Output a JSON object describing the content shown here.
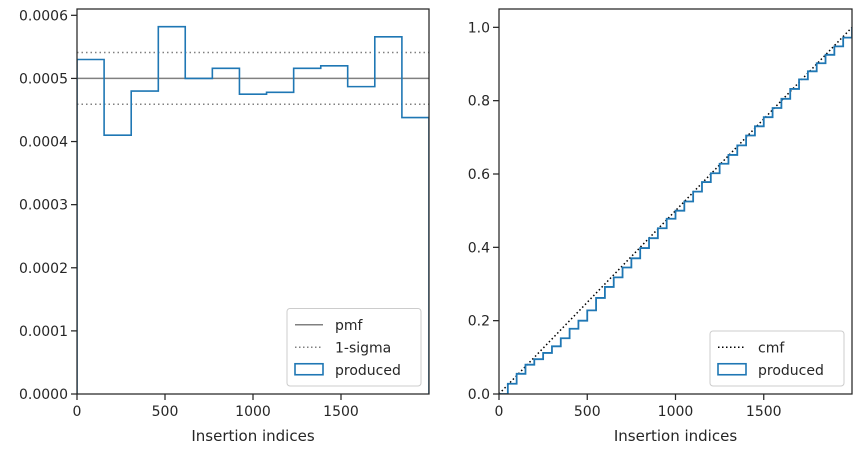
{
  "chart_data": [
    {
      "type": "step",
      "xlabel": "Insertion indices",
      "ylabel": "",
      "xlim": [
        0,
        2000
      ],
      "ylim": [
        0,
        0.00061
      ],
      "xticks": [
        {
          "value": 0,
          "label": "0"
        },
        {
          "value": 500,
          "label": "500"
        },
        {
          "value": 1000,
          "label": "1000"
        },
        {
          "value": 1500,
          "label": "1500"
        }
      ],
      "yticks": [
        {
          "value": 0,
          "label": "0.0000"
        },
        {
          "value": 0.0001,
          "label": "0.0001"
        },
        {
          "value": 0.0002,
          "label": "0.0002"
        },
        {
          "value": 0.0003,
          "label": "0.0003"
        },
        {
          "value": 0.0004,
          "label": "0.0004"
        },
        {
          "value": 0.0005,
          "label": "0.0005"
        },
        {
          "value": 0.0006,
          "label": "0.0006"
        }
      ],
      "bin_edges": [
        0,
        154,
        308,
        462,
        615,
        769,
        923,
        1077,
        1231,
        1385,
        1538,
        1692,
        1846,
        2000
      ],
      "series": [
        {
          "name": "pmf",
          "style": "solid",
          "color": "#808080",
          "value": 0.0005
        },
        {
          "name": "1-sigma",
          "style": "dotted",
          "color": "#808080",
          "values": [
            0.000541,
            0.000459
          ]
        },
        {
          "name": "produced",
          "style": "step",
          "color": "#1f77b4",
          "values": [
            0.00053,
            0.00041,
            0.00048,
            0.000582,
            0.0005,
            0.000516,
            0.000475,
            0.000478,
            0.000516,
            0.00052,
            0.000487,
            0.000566,
            0.000438
          ]
        }
      ],
      "legend": {
        "position": "lower-right",
        "entries": [
          {
            "label": "pmf",
            "kind": "line-solid",
            "color": "#808080"
          },
          {
            "label": "1-sigma",
            "kind": "line-dotted",
            "color": "#808080"
          },
          {
            "label": "produced",
            "kind": "patch",
            "color": "#1f77b4"
          }
        ]
      }
    },
    {
      "type": "line",
      "xlabel": "Insertion indices",
      "ylabel": "",
      "xlim": [
        0,
        2000
      ],
      "ylim": [
        0,
        1.05
      ],
      "xticks": [
        {
          "value": 0,
          "label": "0"
        },
        {
          "value": 500,
          "label": "500"
        },
        {
          "value": 1000,
          "label": "1000"
        },
        {
          "value": 1500,
          "label": "1500"
        }
      ],
      "yticks": [
        {
          "value": 0,
          "label": "0.0"
        },
        {
          "value": 0.2,
          "label": "0.2"
        },
        {
          "value": 0.4,
          "label": "0.4"
        },
        {
          "value": 0.6,
          "label": "0.6"
        },
        {
          "value": 0.8,
          "label": "0.8"
        },
        {
          "value": 1,
          "label": "1.0"
        }
      ],
      "series": [
        {
          "name": "cmf",
          "style": "dotted",
          "color": "#000000",
          "x": [
            0,
            2000
          ],
          "y": [
            0,
            1.0
          ]
        },
        {
          "name": "produced",
          "style": "step",
          "color": "#1f77b4",
          "x": [
            0,
            50,
            100,
            150,
            200,
            250,
            300,
            350,
            400,
            450,
            500,
            550,
            600,
            650,
            700,
            750,
            800,
            850,
            900,
            950,
            1000,
            1050,
            1100,
            1150,
            1200,
            1250,
            1300,
            1350,
            1400,
            1450,
            1500,
            1550,
            1600,
            1650,
            1700,
            1750,
            1800,
            1850,
            1900,
            1950,
            2000
          ],
          "y": [
            0,
            0.028,
            0.055,
            0.08,
            0.095,
            0.112,
            0.13,
            0.152,
            0.178,
            0.2,
            0.228,
            0.262,
            0.292,
            0.318,
            0.345,
            0.37,
            0.398,
            0.425,
            0.452,
            0.478,
            0.5,
            0.525,
            0.552,
            0.578,
            0.602,
            0.628,
            0.652,
            0.678,
            0.705,
            0.73,
            0.755,
            0.78,
            0.805,
            0.832,
            0.858,
            0.88,
            0.902,
            0.925,
            0.948,
            0.972,
            1.0
          ]
        }
      ],
      "legend": {
        "position": "lower-right",
        "entries": [
          {
            "label": "cmf",
            "kind": "line-dotted",
            "color": "#000000"
          },
          {
            "label": "produced",
            "kind": "patch",
            "color": "#1f77b4"
          }
        ]
      }
    }
  ]
}
